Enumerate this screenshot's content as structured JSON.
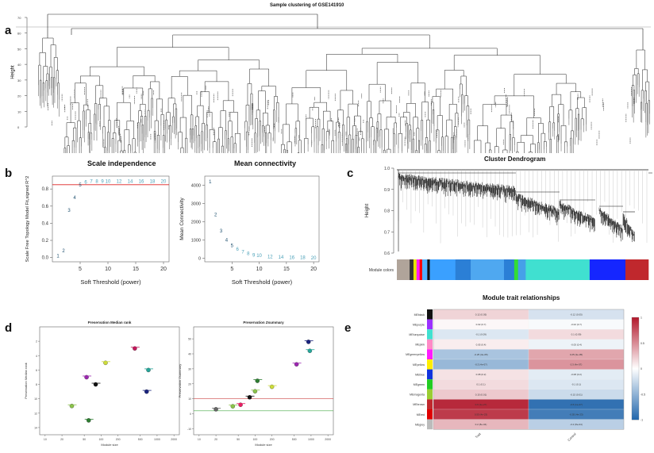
{
  "panel_labels": {
    "a": "a",
    "b": "b",
    "c": "c",
    "d": "d",
    "e": "e"
  },
  "panel_a": {
    "title": "Sample clustering of GSE141910",
    "ylabel": "Height",
    "ticks": [
      "70",
      "60",
      "50",
      "40",
      "30",
      "20",
      "10",
      "0"
    ]
  },
  "chart_data": [
    {
      "type": "scatter",
      "panel": "b-left",
      "title": "Scale independence",
      "xlabel": "Soft Threshold (power)",
      "ylabel": "Scale Free Topology Model Fit,signed R^2",
      "x_ticks": [
        "5",
        "10",
        "15",
        "20"
      ],
      "y_ticks": [
        "0.0",
        "0.2",
        "0.4",
        "0.6",
        "0.8"
      ],
      "xlim": [
        0,
        21
      ],
      "ylim": [
        -0.05,
        0.95
      ],
      "threshold": 0.85,
      "x": [
        1,
        2,
        3,
        4,
        5,
        6,
        7,
        8,
        9,
        10,
        12,
        14,
        16,
        18,
        20
      ],
      "y": [
        0.02,
        0.08,
        0.55,
        0.7,
        0.85,
        0.88,
        0.89,
        0.89,
        0.89,
        0.89,
        0.89,
        0.89,
        0.89,
        0.89,
        0.89
      ],
      "labels": [
        "1",
        "2",
        "3",
        "4",
        "5",
        "6",
        "7",
        "8",
        "9",
        "10",
        "12",
        "14",
        "16",
        "18",
        "20"
      ]
    },
    {
      "type": "scatter",
      "panel": "b-right",
      "title": "Mean connectivity",
      "xlabel": "Soft Threshold (power)",
      "ylabel": "Mean Connectivity",
      "x_ticks": [
        "5",
        "10",
        "15",
        "20"
      ],
      "y_ticks": [
        "0",
        "1000",
        "2000",
        "3000",
        "4000"
      ],
      "xlim": [
        0,
        21
      ],
      "ylim": [
        -200,
        4500
      ],
      "x": [
        1,
        2,
        3,
        4,
        5,
        6,
        7,
        8,
        9,
        10,
        12,
        14,
        16,
        18,
        20
      ],
      "y": [
        4200,
        2400,
        1500,
        1000,
        700,
        500,
        350,
        250,
        180,
        140,
        90,
        60,
        40,
        30,
        20
      ],
      "labels": [
        "1",
        "2",
        "3",
        "4",
        "5",
        "6",
        "7",
        "8",
        "9",
        "10",
        "12",
        "14",
        "16",
        "18",
        "20"
      ]
    },
    {
      "type": "scatter",
      "panel": "d-left",
      "title": "Preservation Median rank",
      "xlabel": "Module size",
      "ylabel": "Preservation Median rank",
      "x_ticks": [
        "10",
        "20",
        "50",
        "100",
        "200",
        "500",
        "1000",
        "2000"
      ],
      "y_ticks": [
        "2",
        "4",
        "6",
        "8",
        "10",
        "12",
        "14"
      ],
      "ylim": [
        15,
        0
      ],
      "points": [
        {
          "size": 30,
          "value": 11,
          "color": "#8bc34a"
        },
        {
          "size": 55,
          "value": 7,
          "color": "#9c27b0"
        },
        {
          "size": 80,
          "value": 8,
          "color": "#111111"
        },
        {
          "size": 60,
          "value": 13,
          "color": "#2e7d32"
        },
        {
          "size": 120,
          "value": 5,
          "color": "#cddc39"
        },
        {
          "size": 400,
          "value": 3,
          "color": "#c2185b"
        },
        {
          "size": 700,
          "value": 6,
          "color": "#26a69a"
        },
        {
          "size": 650,
          "value": 9,
          "color": "#1a237e"
        }
      ]
    },
    {
      "type": "scatter",
      "panel": "d-right",
      "title": "Preservation Zsummary",
      "xlabel": "Module size",
      "ylabel": "Preservation Zsummary",
      "x_ticks": [
        "10",
        "20",
        "50",
        "100",
        "200",
        "500",
        "1000",
        "2000"
      ],
      "y_ticks": [
        "-10",
        "0",
        "10",
        "20",
        "30",
        "40",
        "50"
      ],
      "ylim": [
        -14,
        58
      ],
      "hlines": [
        2,
        10
      ],
      "points": [
        {
          "size": 20,
          "value": 3,
          "color": "#666666"
        },
        {
          "size": 40,
          "value": 5,
          "color": "#8bc34a"
        },
        {
          "size": 55,
          "value": 6,
          "color": "#e91e63"
        },
        {
          "size": 80,
          "value": 11,
          "color": "#111111"
        },
        {
          "size": 100,
          "value": 15,
          "color": "#8bc34a"
        },
        {
          "size": 110,
          "value": 22,
          "color": "#2e7d32"
        },
        {
          "size": 200,
          "value": 18,
          "color": "#cddc39"
        },
        {
          "size": 550,
          "value": 33,
          "color": "#9c27b0"
        },
        {
          "size": 900,
          "value": 48,
          "color": "#1a237e"
        },
        {
          "size": 950,
          "value": 42,
          "color": "#26a69a"
        }
      ]
    },
    {
      "type": "heatmap",
      "panel": "e",
      "title": "Module trait relationships",
      "columns": [
        "Trait",
        "Control"
      ],
      "colorbar_ticks": [
        "1",
        "0.5",
        "0",
        "-0.5",
        "-1"
      ],
      "rows": [
        {
          "module": "MEblack",
          "color": "#111111",
          "vals": [
            0.12,
            -0.12
          ],
          "labels": [
            "0.12 (0.05)",
            "-0.12 (0.05)"
          ]
        },
        {
          "module": "MEpurple",
          "color": "#9b30ff",
          "vals": [
            0.02,
            -0.02
          ],
          "labels": [
            "0.02 (0.7)",
            "-0.02 (0.7)"
          ]
        },
        {
          "module": "MEturquoise",
          "color": "#40e0d0",
          "vals": [
            -0.1,
            0.1
          ],
          "labels": [
            "-0.1 (0.09)",
            "0.1 (0.09)"
          ]
        },
        {
          "module": "MEpink",
          "color": "#ff8ac6",
          "vals": [
            0.05,
            -0.05
          ],
          "labels": [
            "0.05 (0.4)",
            "-0.05 (0.4)"
          ]
        },
        {
          "module": "MEgreenyellow",
          "color": "#ff1aff",
          "vals": [
            -0.25,
            0.25
          ],
          "labels": [
            "-0.25 (3e-05)",
            "0.25 (3e-05)"
          ]
        },
        {
          "module": "MEyellow",
          "color": "#ffee00",
          "vals": [
            -0.3,
            0.3
          ],
          "labels": [
            "-0.3 (4e-07)",
            "0.3 (4e-07)"
          ]
        },
        {
          "module": "MEblue",
          "color": "#1133dd",
          "vals": [
            0.08,
            -0.08
          ],
          "labels": [
            "0.08 (0.2)",
            "-0.08 (0.2)"
          ]
        },
        {
          "module": "MEgreen",
          "color": "#22cc22",
          "vals": [
            0.1,
            -0.1
          ],
          "labels": [
            "0.1 (0.1)",
            "-0.1 (0.1)"
          ]
        },
        {
          "module": "MEmagenta",
          "color": "#9acd32",
          "vals": [
            0.15,
            -0.15
          ],
          "labels": [
            "0.15 (0.01)",
            "-0.15 (0.01)"
          ]
        },
        {
          "module": "MEbrown",
          "color": "#c0282d",
          "vals": [
            0.6,
            -0.6
          ],
          "labels": [
            "0.6 (1e-27)",
            "-0.6 (1e-27)"
          ]
        },
        {
          "module": "MEred",
          "color": "#e00000",
          "vals": [
            0.55,
            -0.55
          ],
          "labels": [
            "0.55 (4e-23)",
            "-0.55 (4e-23)"
          ]
        },
        {
          "module": "MEgrey",
          "color": "#bbbbbb",
          "vals": [
            0.2,
            -0.2
          ],
          "labels": [
            "0.2 (8e-04)",
            "-0.2 (8e-04)"
          ]
        }
      ]
    }
  ],
  "panel_c": {
    "title": "Cluster Dendrogram",
    "ylabel": "Height",
    "y_ticks": [
      "0.6",
      "0.7",
      "0.8",
      "0.9",
      "1.0"
    ],
    "colorbar_label": "Module colors",
    "module_segments": [
      {
        "color": "#b0a49a",
        "w": 5
      },
      {
        "color": "#333333",
        "w": 1.5
      },
      {
        "color": "#e6e600",
        "w": 1.2
      },
      {
        "color": "#ff1aff",
        "w": 1.2
      },
      {
        "color": "#ff0000",
        "w": 1
      },
      {
        "color": "#4fb0ff",
        "w": 2
      },
      {
        "color": "#111111",
        "w": 1
      },
      {
        "color": "#3aa0ff",
        "w": 10
      },
      {
        "color": "#2b7fd6",
        "w": 6
      },
      {
        "color": "#4fa8f0",
        "w": 13
      },
      {
        "color": "#2b7fd6",
        "w": 4
      },
      {
        "color": "#33dd33",
        "w": 1.5
      },
      {
        "color": "#46a0e8",
        "w": 3
      },
      {
        "color": "#40e0d0",
        "w": 25
      },
      {
        "color": "#1526ff",
        "w": 14
      },
      {
        "color": "#c0282d",
        "w": 9
      }
    ]
  }
}
